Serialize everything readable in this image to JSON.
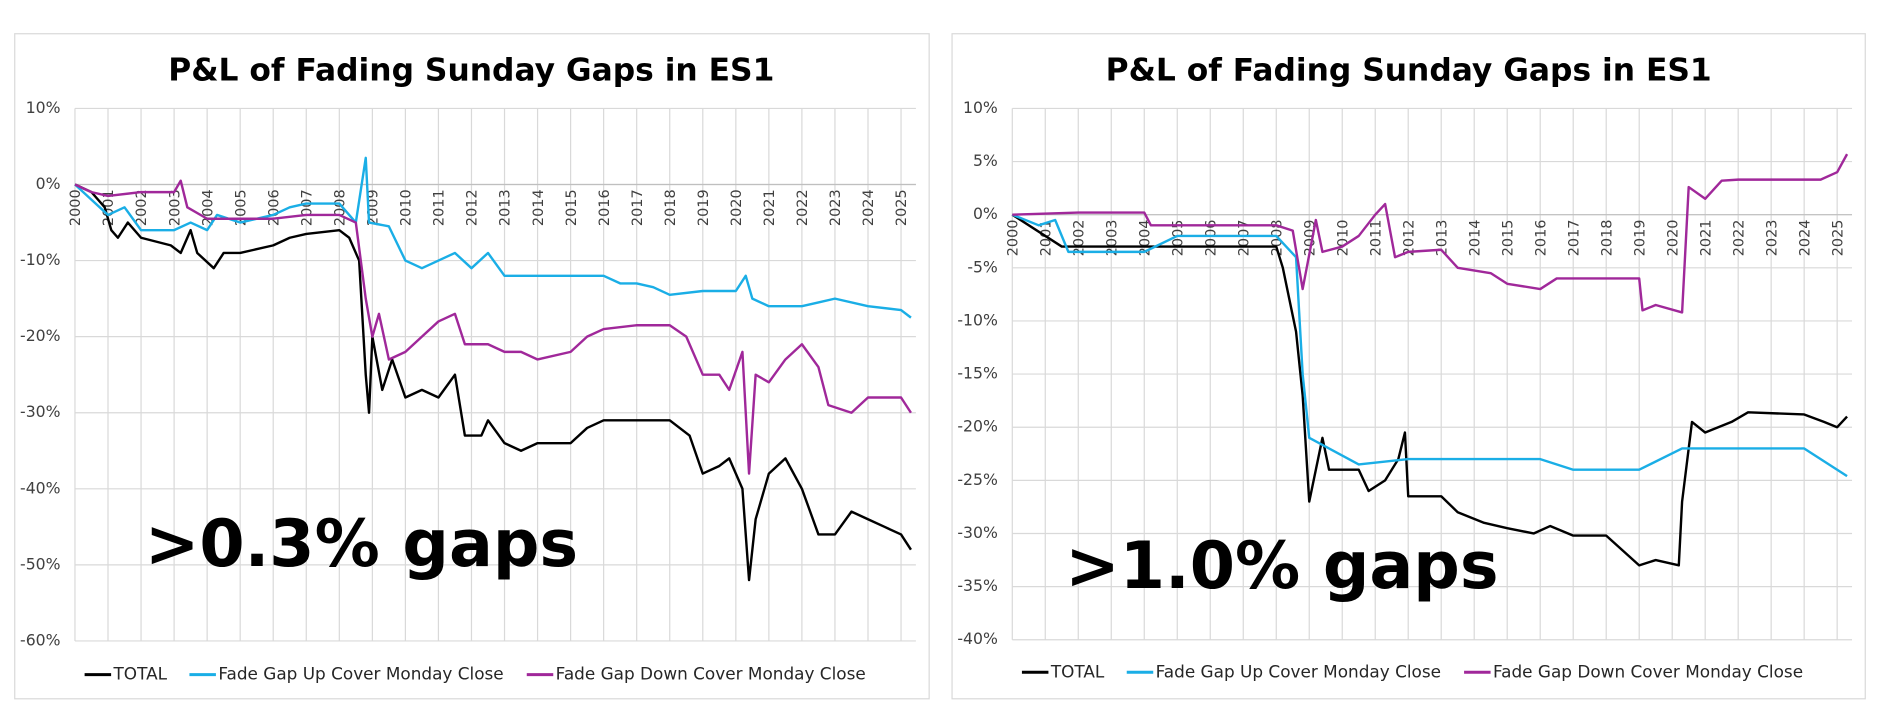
{
  "chart_data": [
    {
      "type": "line",
      "title": "P&L of Fading Sunday Gaps in ES1",
      "annotation": ">0.3% gaps",
      "xlim": [
        2000,
        2025.45
      ],
      "xticks": [
        2000,
        2001,
        2002,
        2003,
        2004,
        2005,
        2006,
        2007,
        2008,
        2009,
        2010,
        2011,
        2012,
        2013,
        2014,
        2015,
        2016,
        2017,
        2018,
        2019,
        2020,
        2021,
        2022,
        2023,
        2024,
        2025
      ],
      "ylim": [
        -60,
        10
      ],
      "yticks": [
        {
          "value": -60,
          "label": "-60%"
        },
        {
          "value": -50,
          "label": "-50%"
        },
        {
          "value": -40,
          "label": "-40%"
        },
        {
          "value": -30,
          "label": "-30%"
        },
        {
          "value": -20,
          "label": "-20%"
        },
        {
          "value": -10,
          "label": "-10%"
        },
        {
          "value": 0,
          "label": "0%"
        },
        {
          "value": 10,
          "label": "10%"
        }
      ],
      "grid": true,
      "legend": "bottom",
      "series": [
        {
          "name": "TOTAL",
          "color": "#000000",
          "x": [
            2000,
            2000.5,
            2000.9,
            2001.1,
            2001.3,
            2001.6,
            2002,
            2002.9,
            2003.2,
            2003.5,
            2003.7,
            2004.2,
            2004.5,
            2005,
            2006,
            2006.5,
            2007,
            2008,
            2008.3,
            2008.6,
            2008.8,
            2008.9,
            2009,
            2009.3,
            2009.6,
            2010,
            2010.5,
            2011,
            2011.5,
            2011.8,
            2012.3,
            2012.5,
            2013,
            2013.5,
            2014,
            2015,
            2015.5,
            2016,
            2017,
            2018,
            2018.6,
            2019,
            2019.5,
            2019.8,
            2020.2,
            2020.4,
            2020.6,
            2021,
            2021.5,
            2022,
            2022.5,
            2023,
            2023.5,
            2024,
            2024.5,
            2025,
            2025.3
          ],
          "values": [
            0,
            -1,
            -3,
            -6,
            -7,
            -5,
            -7,
            -8,
            -9,
            -6,
            -9,
            -11,
            -9,
            -9,
            -8,
            -7,
            -6.5,
            -6,
            -7,
            -10,
            -25,
            -30,
            -20,
            -27,
            -23,
            -28,
            -27,
            -28,
            -25,
            -33,
            -33,
            -31,
            -34,
            -35,
            -34,
            -34,
            -32,
            -31,
            -31,
            -31,
            -33,
            -38,
            -37,
            -36,
            -40,
            -52,
            -44,
            -38,
            -36,
            -40,
            -46,
            -46,
            -43,
            -44,
            -45,
            -46,
            -48
          ]
        },
        {
          "name": "Fade Gap Up Cover Monday Close",
          "color": "#1aaee6",
          "x": [
            2000,
            2000.5,
            2001,
            2001.5,
            2002,
            2003,
            2003.5,
            2004,
            2004.3,
            2005,
            2006,
            2006.5,
            2007,
            2008,
            2008.5,
            2008.8,
            2008.9,
            2009.5,
            2010,
            2010.5,
            2011,
            2011.5,
            2012,
            2012.5,
            2013,
            2014,
            2015,
            2016,
            2016.5,
            2017,
            2017.5,
            2018,
            2019,
            2020,
            2020.3,
            2020.5,
            2021,
            2022,
            2022.5,
            2023,
            2024,
            2025,
            2025.3
          ],
          "values": [
            0,
            -2,
            -4,
            -3,
            -6,
            -6,
            -5,
            -6,
            -4,
            -5,
            -4,
            -3,
            -2.5,
            -2.5,
            -5,
            3.5,
            -5,
            -5.5,
            -10,
            -11,
            -10,
            -9,
            -11,
            -9,
            -12,
            -12,
            -12,
            -12,
            -13,
            -13,
            -13.5,
            -14.5,
            -14,
            -14,
            -12,
            -15,
            -16,
            -16,
            -15.5,
            -15,
            -16,
            -16.5,
            -17.5
          ]
        },
        {
          "name": "Fade Gap Down Cover Monday Close",
          "color": "#a0289a",
          "x": [
            2000,
            2000.5,
            2001,
            2002,
            2003,
            2003.2,
            2003.4,
            2004,
            2005,
            2006,
            2007,
            2008,
            2008.5,
            2008.8,
            2009,
            2009.2,
            2009.5,
            2010,
            2010.5,
            2011,
            2011.5,
            2011.8,
            2012.5,
            2013,
            2013.5,
            2014,
            2015,
            2015.5,
            2016,
            2017,
            2018,
            2018.5,
            2019,
            2019.5,
            2019.8,
            2020.2,
            2020.4,
            2020.6,
            2021,
            2021.5,
            2022,
            2022.5,
            2022.8,
            2023.5,
            2024,
            2025,
            2025.3
          ],
          "values": [
            0,
            -1,
            -1.5,
            -1,
            -1,
            0.5,
            -3,
            -4.5,
            -4.5,
            -4.5,
            -4,
            -4,
            -5,
            -15,
            -20,
            -17,
            -23,
            -22,
            -20,
            -18,
            -17,
            -21,
            -21,
            -22,
            -22,
            -23,
            -22,
            -20,
            -19,
            -18.5,
            -18.5,
            -20,
            -25,
            -25,
            -27,
            -22,
            -38,
            -25,
            -26,
            -23,
            -21,
            -24,
            -29,
            -30,
            -28,
            -28,
            -30
          ]
        }
      ]
    },
    {
      "type": "line",
      "title": "P&L of Fading Sunday Gaps in ES1",
      "annotation": ">1.0% gaps",
      "xlim": [
        2000,
        2025.45
      ],
      "xticks": [
        2000,
        2001,
        2002,
        2003,
        2004,
        2005,
        2006,
        2007,
        2008,
        2009,
        2010,
        2011,
        2012,
        2013,
        2014,
        2015,
        2016,
        2017,
        2018,
        2019,
        2020,
        2021,
        2022,
        2023,
        2024,
        2025
      ],
      "ylim": [
        -40,
        10
      ],
      "yticks": [
        {
          "value": -40,
          "label": "-40%"
        },
        {
          "value": -35,
          "label": "-35%"
        },
        {
          "value": -30,
          "label": "-30%"
        },
        {
          "value": -25,
          "label": "-25%"
        },
        {
          "value": -20,
          "label": "-20%"
        },
        {
          "value": -15,
          "label": "-15%"
        },
        {
          "value": -10,
          "label": "-10%"
        },
        {
          "value": -5,
          "label": "-5%"
        },
        {
          "value": 0,
          "label": "0%"
        },
        {
          "value": 5,
          "label": "5%"
        },
        {
          "value": 10,
          "label": "10%"
        }
      ],
      "grid": true,
      "legend": "bottom",
      "series": [
        {
          "name": "TOTAL",
          "color": "#000000",
          "x": [
            2000,
            2001.5,
            2004,
            2005,
            2008,
            2008.2,
            2008.6,
            2008.8,
            2009,
            2009.4,
            2009.6,
            2010.5,
            2010.8,
            2011.3,
            2011.7,
            2011.9,
            2012,
            2013,
            2013.5,
            2014.3,
            2015,
            2015.8,
            2016.3,
            2017,
            2018,
            2019,
            2019.5,
            2020.2,
            2020.3,
            2020.6,
            2021,
            2021.8,
            2022.3,
            2024,
            2024.6,
            2025,
            2025.3
          ],
          "values": [
            0,
            -3,
            -3,
            -3,
            -3,
            -5,
            -11,
            -17,
            -27,
            -21,
            -24,
            -24,
            -26,
            -25,
            -23,
            -20.5,
            -26.5,
            -26.5,
            -28,
            -29,
            -29.5,
            -30,
            -29.3,
            -30.2,
            -30.2,
            -33,
            -32.5,
            -33,
            -27,
            -19.5,
            -20.5,
            -19.5,
            -18.6,
            -18.8,
            -19.5,
            -20,
            -19
          ]
        },
        {
          "name": "Fade Gap Up Cover Monday Close",
          "color": "#1aaee6",
          "x": [
            2000,
            2000.8,
            2001.3,
            2001.7,
            2004,
            2005,
            2008,
            2008.6,
            2008.8,
            2009,
            2010.5,
            2012,
            2016,
            2017,
            2019,
            2020.3,
            2024,
            2024.5,
            2025,
            2025.3
          ],
          "values": [
            0,
            -1,
            -0.5,
            -3.5,
            -3.5,
            -2,
            -2,
            -4,
            -15,
            -21,
            -23.5,
            -23,
            -23,
            -24,
            -24,
            -22,
            -22,
            -23,
            -24,
            -24.6
          ]
        },
        {
          "name": "Fade Gap Down Cover Monday Close",
          "color": "#a0289a",
          "x": [
            2000,
            2002,
            2004,
            2004.2,
            2008,
            2008.5,
            2008.8,
            2009.2,
            2009.4,
            2010,
            2010.5,
            2011,
            2011.3,
            2011.6,
            2012,
            2013,
            2013.5,
            2014.5,
            2015,
            2016,
            2016.5,
            2019,
            2019.1,
            2019.5,
            2020.3,
            2020.5,
            2021,
            2021.5,
            2022,
            2024.5,
            2025,
            2025.3
          ],
          "values": [
            0,
            0.2,
            0.2,
            -1,
            -1,
            -1.5,
            -7,
            -0.5,
            -3.5,
            -3,
            -2,
            0,
            1,
            -4,
            -3.5,
            -3.3,
            -5,
            -5.5,
            -6.5,
            -7,
            -6,
            -6,
            -9,
            -8.5,
            -9.2,
            2.6,
            1.5,
            3.2,
            3.3,
            3.3,
            4,
            5.7
          ]
        }
      ]
    }
  ]
}
